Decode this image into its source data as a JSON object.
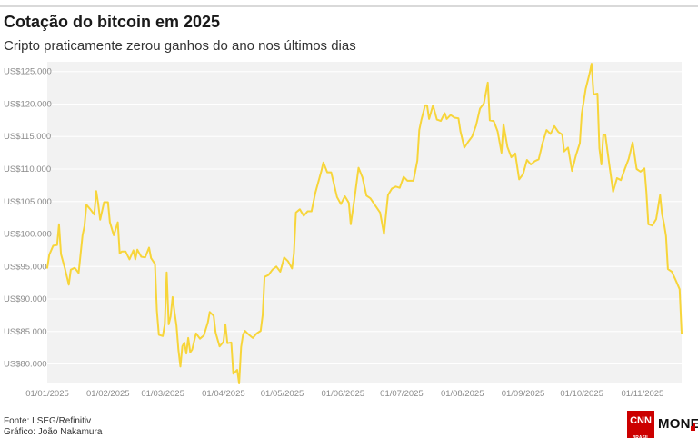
{
  "header": {
    "title": "Cotação do bitcoin em 2025",
    "subtitle": "Cripto praticamente zerou ganhos do ano nos últimos dias"
  },
  "footer": {
    "source": "Fonte: LSEG/Refinitiv",
    "credit": "Gráfico: João Nakamura"
  },
  "logo": {
    "brand": "CNN",
    "brand_sub": "BRASIL",
    "section": "MONEY",
    "color": "#cc0000"
  },
  "chart_data": {
    "type": "line",
    "title": "Cotação do bitcoin em 2025",
    "subtitle": "Cripto praticamente zerou ganhos do ano nos últimos dias",
    "xlabel": "",
    "ylabel": "",
    "xlim": [
      "2025-01-01",
      "2025-11-21"
    ],
    "ylim": [
      77000,
      126500
    ],
    "y_ticks": [
      80000,
      85000,
      90000,
      95000,
      100000,
      105000,
      110000,
      115000,
      120000,
      125000
    ],
    "y_tick_labels": [
      "US$80.000",
      "US$85.000",
      "US$90.000",
      "US$95.000",
      "US$100.000",
      "US$105.000",
      "US$110.000",
      "US$115.000",
      "US$120.000",
      "US$125.000"
    ],
    "x_ticks": [
      "2025-01-01",
      "2025-02-01",
      "2025-03-01",
      "2025-04-01",
      "2025-05-01",
      "2025-06-01",
      "2025-07-01",
      "2025-08-01",
      "2025-09-01",
      "2025-10-01",
      "2025-11-01"
    ],
    "x_tick_labels": [
      "01/01/2025",
      "01/02/2025",
      "01/03/2025",
      "01/04/2025",
      "01/05/2025",
      "01/06/2025",
      "01/07/2025",
      "01/08/2025",
      "01/09/2025",
      "01/10/2025",
      "01/11/2025"
    ],
    "grid": true,
    "line_color": "#f7d53a",
    "background_color": "#f2f2f2",
    "series": [
      {
        "name": "",
        "points": [
          [
            "2025-01-01",
            94800
          ],
          [
            "2025-01-02",
            96800
          ],
          [
            "2025-01-04",
            98200
          ],
          [
            "2025-01-06",
            98300
          ],
          [
            "2025-01-07",
            101500
          ],
          [
            "2025-01-08",
            96900
          ],
          [
            "2025-01-10",
            94700
          ],
          [
            "2025-01-12",
            92200
          ],
          [
            "2025-01-13",
            94500
          ],
          [
            "2025-01-15",
            94800
          ],
          [
            "2025-01-17",
            94000
          ],
          [
            "2025-01-19",
            99800
          ],
          [
            "2025-01-20",
            101200
          ],
          [
            "2025-01-21",
            104500
          ],
          [
            "2025-01-23",
            103800
          ],
          [
            "2025-01-25",
            103000
          ],
          [
            "2025-01-26",
            106600
          ],
          [
            "2025-01-27",
            104700
          ],
          [
            "2025-01-28",
            102200
          ],
          [
            "2025-01-30",
            104900
          ],
          [
            "2025-02-01",
            104900
          ],
          [
            "2025-02-02",
            101800
          ],
          [
            "2025-02-04",
            99800
          ],
          [
            "2025-02-06",
            101800
          ],
          [
            "2025-02-07",
            97000
          ],
          [
            "2025-02-08",
            97300
          ],
          [
            "2025-02-10",
            97300
          ],
          [
            "2025-02-12",
            96100
          ],
          [
            "2025-02-14",
            97500
          ],
          [
            "2025-02-15",
            96100
          ],
          [
            "2025-02-16",
            97600
          ],
          [
            "2025-02-18",
            96500
          ],
          [
            "2025-02-20",
            96400
          ],
          [
            "2025-02-22",
            97900
          ],
          [
            "2025-02-23",
            96300
          ],
          [
            "2025-02-25",
            95400
          ],
          [
            "2025-02-26",
            88200
          ],
          [
            "2025-02-27",
            84500
          ],
          [
            "2025-03-01",
            84300
          ],
          [
            "2025-03-02",
            86100
          ],
          [
            "2025-03-03",
            94100
          ],
          [
            "2025-03-04",
            86100
          ],
          [
            "2025-03-05",
            87300
          ],
          [
            "2025-03-06",
            90300
          ],
          [
            "2025-03-07",
            88000
          ],
          [
            "2025-03-08",
            85900
          ],
          [
            "2025-03-09",
            82200
          ],
          [
            "2025-03-10",
            79600
          ],
          [
            "2025-03-11",
            82700
          ],
          [
            "2025-03-12",
            83300
          ],
          [
            "2025-03-13",
            81600
          ],
          [
            "2025-03-14",
            84000
          ],
          [
            "2025-03-15",
            81800
          ],
          [
            "2025-03-16",
            82200
          ],
          [
            "2025-03-18",
            84700
          ],
          [
            "2025-03-20",
            83900
          ],
          [
            "2025-03-22",
            84400
          ],
          [
            "2025-03-24",
            86400
          ],
          [
            "2025-03-25",
            88000
          ],
          [
            "2025-03-27",
            87400
          ],
          [
            "2025-03-28",
            84800
          ],
          [
            "2025-03-30",
            82700
          ],
          [
            "2025-04-01",
            83400
          ],
          [
            "2025-04-02",
            86100
          ],
          [
            "2025-04-03",
            83200
          ],
          [
            "2025-04-05",
            83300
          ],
          [
            "2025-04-06",
            78500
          ],
          [
            "2025-04-08",
            79100
          ],
          [
            "2025-04-09",
            77000
          ],
          [
            "2025-04-10",
            82600
          ],
          [
            "2025-04-11",
            84500
          ],
          [
            "2025-04-12",
            85100
          ],
          [
            "2025-04-14",
            84500
          ],
          [
            "2025-04-16",
            84000
          ],
          [
            "2025-04-18",
            84700
          ],
          [
            "2025-04-20",
            85100
          ],
          [
            "2025-04-21",
            87500
          ],
          [
            "2025-04-22",
            93400
          ],
          [
            "2025-04-24",
            93700
          ],
          [
            "2025-04-26",
            94500
          ],
          [
            "2025-04-28",
            95000
          ],
          [
            "2025-04-30",
            94200
          ],
          [
            "2025-05-02",
            96400
          ],
          [
            "2025-05-04",
            95800
          ],
          [
            "2025-05-06",
            94700
          ],
          [
            "2025-05-07",
            97000
          ],
          [
            "2025-05-08",
            103300
          ],
          [
            "2025-05-10",
            103800
          ],
          [
            "2025-05-12",
            102800
          ],
          [
            "2025-05-14",
            103500
          ],
          [
            "2025-05-16",
            103500
          ],
          [
            "2025-05-18",
            106400
          ],
          [
            "2025-05-21",
            109700
          ],
          [
            "2025-05-22",
            111000
          ],
          [
            "2025-05-24",
            109500
          ],
          [
            "2025-05-26",
            109500
          ],
          [
            "2025-05-29",
            105700
          ],
          [
            "2025-05-31",
            104600
          ],
          [
            "2025-06-02",
            105800
          ],
          [
            "2025-06-04",
            104800
          ],
          [
            "2025-06-05",
            101500
          ],
          [
            "2025-06-07",
            105600
          ],
          [
            "2025-06-09",
            110200
          ],
          [
            "2025-06-11",
            108700
          ],
          [
            "2025-06-13",
            105900
          ],
          [
            "2025-06-15",
            105500
          ],
          [
            "2025-06-17",
            104600
          ],
          [
            "2025-06-20",
            103300
          ],
          [
            "2025-06-22",
            100000
          ],
          [
            "2025-06-24",
            106000
          ],
          [
            "2025-06-26",
            107000
          ],
          [
            "2025-06-28",
            107300
          ],
          [
            "2025-06-30",
            107100
          ],
          [
            "2025-07-02",
            108800
          ],
          [
            "2025-07-04",
            108200
          ],
          [
            "2025-07-07",
            108200
          ],
          [
            "2025-07-09",
            111300
          ],
          [
            "2025-07-10",
            116000
          ],
          [
            "2025-07-11",
            117500
          ],
          [
            "2025-07-13",
            119800
          ],
          [
            "2025-07-14",
            119800
          ],
          [
            "2025-07-15",
            117700
          ],
          [
            "2025-07-17",
            119800
          ],
          [
            "2025-07-19",
            117600
          ],
          [
            "2025-07-21",
            117400
          ],
          [
            "2025-07-23",
            118600
          ],
          [
            "2025-07-24",
            117700
          ],
          [
            "2025-07-26",
            118300
          ],
          [
            "2025-07-28",
            117900
          ],
          [
            "2025-07-30",
            117800
          ],
          [
            "2025-07-31",
            115800
          ],
          [
            "2025-08-02",
            113300
          ],
          [
            "2025-08-04",
            114200
          ],
          [
            "2025-08-06",
            115000
          ],
          [
            "2025-08-08",
            116700
          ],
          [
            "2025-08-10",
            119300
          ],
          [
            "2025-08-12",
            120100
          ],
          [
            "2025-08-14",
            123300
          ],
          [
            "2025-08-15",
            117500
          ],
          [
            "2025-08-17",
            117400
          ],
          [
            "2025-08-19",
            115800
          ],
          [
            "2025-08-21",
            112500
          ],
          [
            "2025-08-22",
            116900
          ],
          [
            "2025-08-24",
            113400
          ],
          [
            "2025-08-26",
            111800
          ],
          [
            "2025-08-28",
            112400
          ],
          [
            "2025-08-30",
            108400
          ],
          [
            "2025-09-01",
            109200
          ],
          [
            "2025-09-03",
            111400
          ],
          [
            "2025-09-05",
            110700
          ],
          [
            "2025-09-07",
            111200
          ],
          [
            "2025-09-09",
            111500
          ],
          [
            "2025-09-11",
            114000
          ],
          [
            "2025-09-13",
            116000
          ],
          [
            "2025-09-15",
            115400
          ],
          [
            "2025-09-17",
            116600
          ],
          [
            "2025-09-19",
            115700
          ],
          [
            "2025-09-21",
            115300
          ],
          [
            "2025-09-22",
            112700
          ],
          [
            "2025-09-24",
            113300
          ],
          [
            "2025-09-26",
            109700
          ],
          [
            "2025-09-28",
            112100
          ],
          [
            "2025-09-30",
            114000
          ],
          [
            "2025-10-01",
            118500
          ],
          [
            "2025-10-03",
            122300
          ],
          [
            "2025-10-05",
            124700
          ],
          [
            "2025-10-06",
            126200
          ],
          [
            "2025-10-07",
            121500
          ],
          [
            "2025-10-09",
            121600
          ],
          [
            "2025-10-10",
            113200
          ],
          [
            "2025-10-11",
            110700
          ],
          [
            "2025-10-12",
            115200
          ],
          [
            "2025-10-13",
            115300
          ],
          [
            "2025-10-15",
            110800
          ],
          [
            "2025-10-17",
            106500
          ],
          [
            "2025-10-19",
            108600
          ],
          [
            "2025-10-21",
            108300
          ],
          [
            "2025-10-23",
            110000
          ],
          [
            "2025-10-25",
            111600
          ],
          [
            "2025-10-27",
            114100
          ],
          [
            "2025-10-29",
            110000
          ],
          [
            "2025-10-31",
            109600
          ],
          [
            "2025-11-02",
            110100
          ],
          [
            "2025-11-03",
            106500
          ],
          [
            "2025-11-04",
            101500
          ],
          [
            "2025-11-06",
            101300
          ],
          [
            "2025-11-08",
            102300
          ],
          [
            "2025-11-10",
            106000
          ],
          [
            "2025-11-11",
            103000
          ],
          [
            "2025-11-12",
            101600
          ],
          [
            "2025-11-13",
            99700
          ],
          [
            "2025-11-14",
            94600
          ],
          [
            "2025-11-16",
            94200
          ],
          [
            "2025-11-18",
            92900
          ],
          [
            "2025-11-20",
            91500
          ],
          [
            "2025-11-21",
            84700
          ]
        ]
      }
    ]
  }
}
